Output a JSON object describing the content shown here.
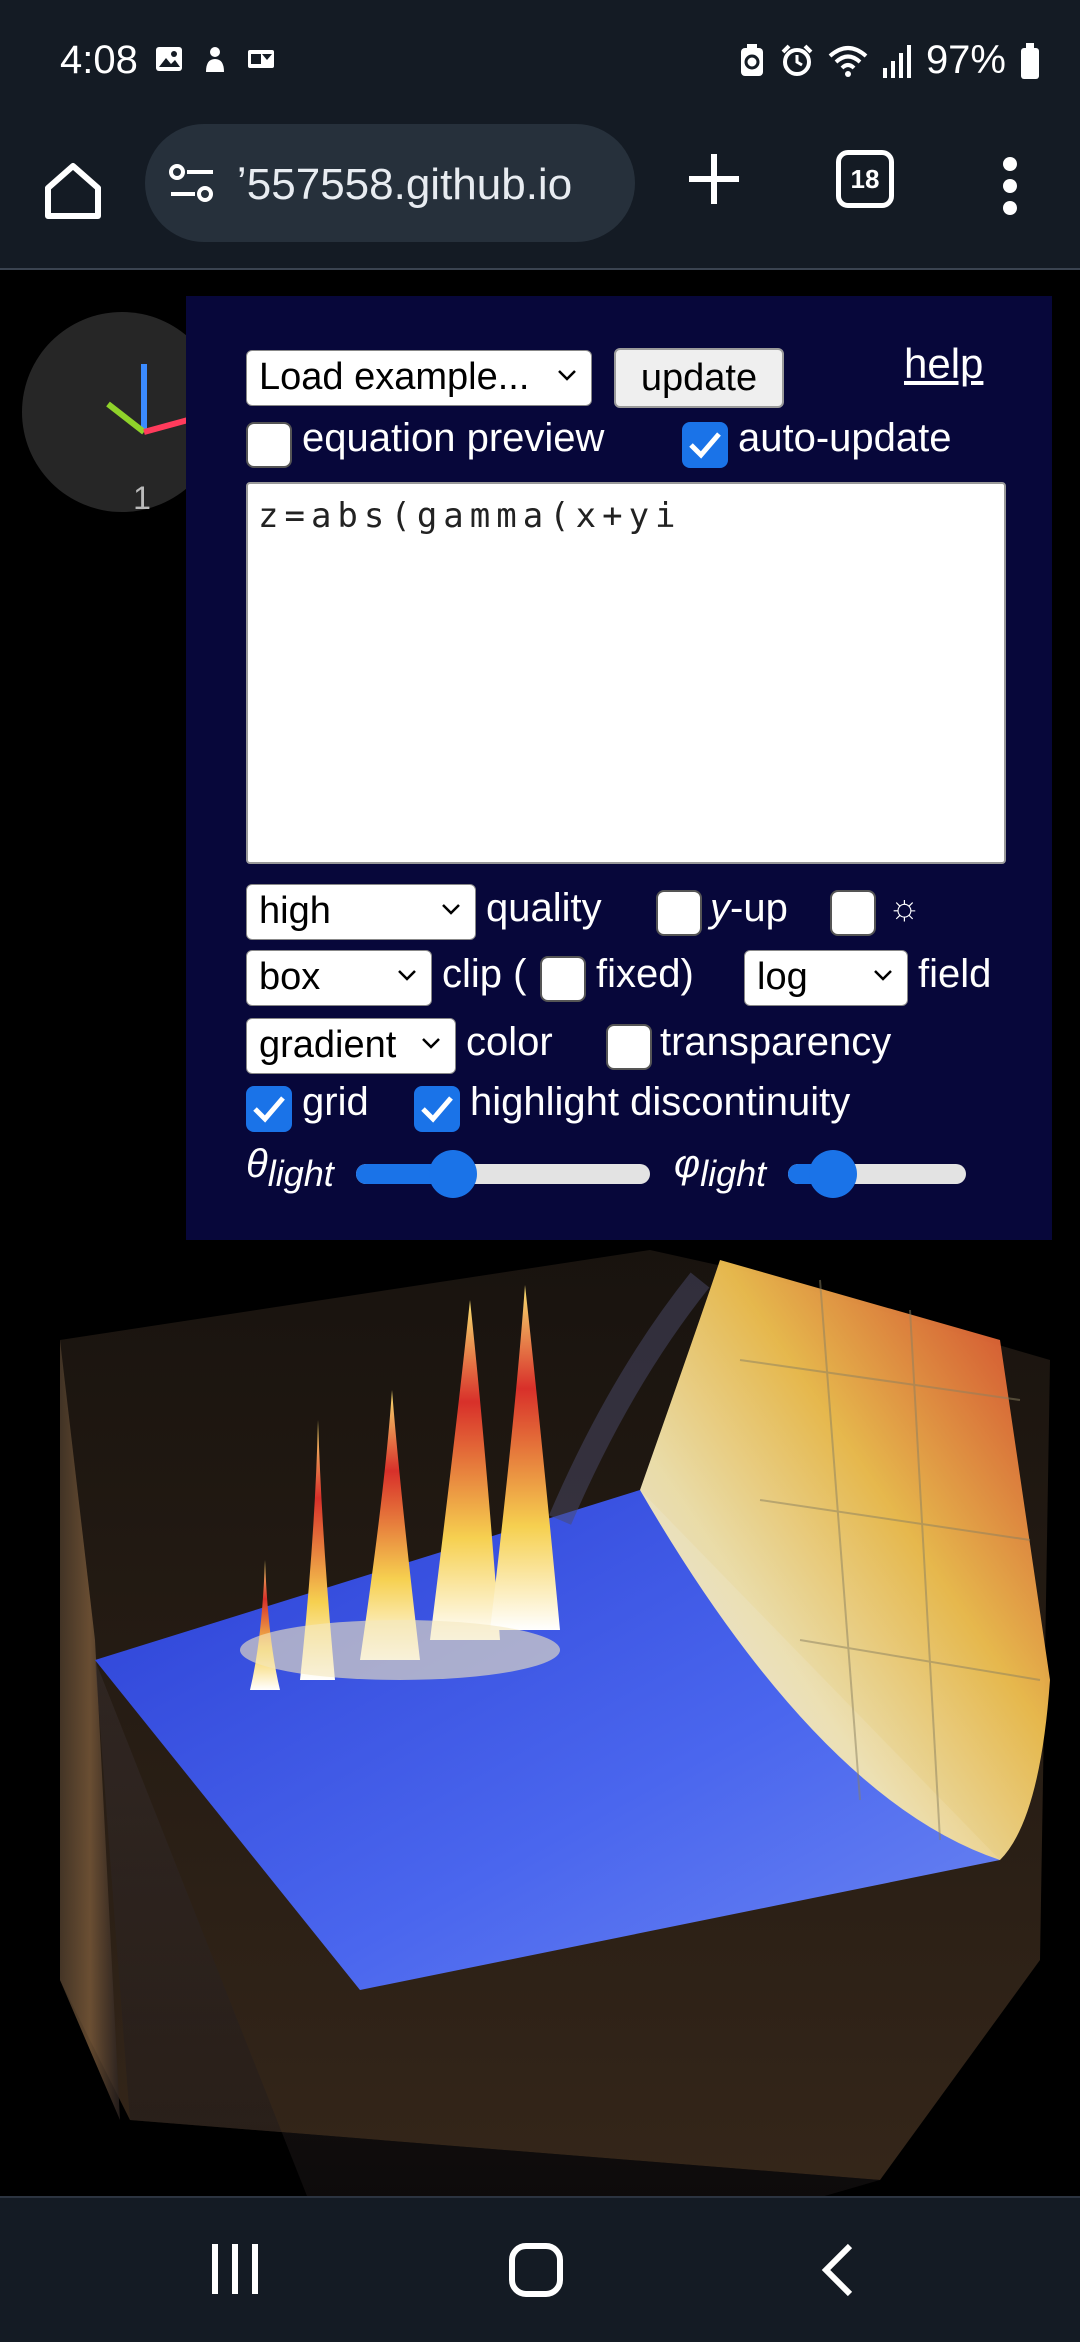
{
  "status": {
    "time": "4:08",
    "battery": "97%",
    "left_icons": [
      "gallery-icon",
      "person-icon",
      "outlook-icon"
    ],
    "right_icons": [
      "battery-saver-icon",
      "alarm-icon",
      "wifi-icon",
      "signal-icon",
      "battery-icon"
    ]
  },
  "browser": {
    "url": "ʼ557558.github.io",
    "tab_count": "18"
  },
  "axes_widget": {
    "count": "1"
  },
  "panel": {
    "example_select": "Load example...",
    "update_label": "update",
    "help_label": "help",
    "equation_preview": {
      "label": "equation preview",
      "checked": false
    },
    "auto_update": {
      "label": "auto-update",
      "checked": true
    },
    "equation": "z=abs(gamma(x+yi",
    "quality_select": "high",
    "quality_label": "quality",
    "y_up": {
      "label_italic": "y",
      "label_rest": "-up",
      "checked": false
    },
    "light_toggle": {
      "label": "☼",
      "checked": false
    },
    "clip_select": "box",
    "clip_label": "clip (",
    "fixed": {
      "label": "fixed)",
      "checked": false
    },
    "field_select": "log",
    "field_label": "field",
    "color_select": "gradient",
    "color_label": "color",
    "transparency": {
      "label": "transparency",
      "checked": false
    },
    "grid": {
      "label": "grid",
      "checked": true
    },
    "highlight": {
      "label": "highlight discontinuity",
      "checked": true
    },
    "theta": {
      "symbol": "θ",
      "sub": "light",
      "value": 0.33
    },
    "phi": {
      "symbol": "φ",
      "sub": "light",
      "value": 0.25
    }
  },
  "colors": {
    "panel_bg": "#07073a",
    "accent": "#1a73e8",
    "surface_blue": "#3a55e6"
  }
}
